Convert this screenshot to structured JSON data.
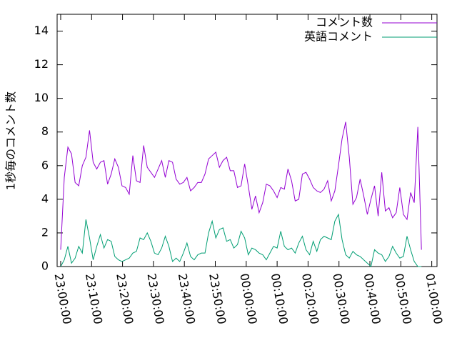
{
  "chart_data": {
    "type": "line",
    "ylabel": "1秒毎のコメント数",
    "x": [
      0,
      70,
      140,
      210,
      280,
      350,
      420,
      490,
      560,
      630,
      700,
      770,
      840,
      910,
      980,
      1050,
      1120,
      1190,
      1260,
      1330,
      1400,
      1470,
      1540,
      1610,
      1680,
      1750,
      1820,
      1890,
      1960,
      2030,
      2100,
      2170,
      2240,
      2310,
      2380,
      2450,
      2520,
      2590,
      2660,
      2730,
      2800,
      2870,
      2940,
      3010,
      3080,
      3150,
      3220,
      3290,
      3360,
      3430,
      3500,
      3570,
      3640,
      3710,
      3780,
      3850,
      3920,
      3990,
      4060,
      4130,
      4200,
      4270,
      4340,
      4410,
      4480,
      4550,
      4620,
      4690,
      4760,
      4830,
      4900,
      4970,
      5040,
      5110,
      5180,
      5250,
      5320,
      5390,
      5460,
      5530,
      5600,
      5670,
      5740,
      5810,
      5880,
      5950,
      6020,
      6090,
      6160,
      6230,
      6300,
      6370,
      6440,
      6510,
      6580,
      6650,
      6720,
      6790,
      6860,
      6930,
      7000
    ],
    "series": [
      {
        "name": "コメント数",
        "color": "#9400d3",
        "values": [
          1.0,
          5.3,
          7.1,
          6.7,
          5.0,
          4.8,
          6.0,
          6.5,
          8.1,
          6.2,
          5.8,
          6.2,
          6.3,
          4.9,
          5.5,
          6.4,
          5.9,
          4.8,
          4.7,
          4.3,
          6.6,
          5.1,
          5.0,
          7.2,
          5.9,
          5.6,
          5.3,
          5.8,
          6.3,
          5.3,
          6.3,
          6.2,
          5.2,
          4.9,
          5.0,
          5.3,
          4.5,
          4.7,
          5.0,
          5.0,
          5.5,
          6.4,
          6.6,
          6.8,
          5.9,
          6.3,
          6.5,
          5.7,
          5.7,
          4.7,
          4.8,
          6.1,
          4.8,
          3.4,
          4.2,
          3.2,
          3.8,
          4.9,
          4.8,
          4.5,
          4.1,
          4.7,
          4.6,
          5.8,
          5.1,
          3.9,
          4.0,
          5.5,
          5.6,
          5.2,
          4.7,
          4.5,
          4.4,
          4.6,
          5.1,
          3.9,
          4.5,
          6.0,
          7.6,
          8.6,
          6.5,
          3.7,
          4.1,
          5.2,
          4.2,
          3.1,
          4.0,
          4.8,
          3.0,
          5.6,
          3.3,
          3.5,
          2.9,
          3.2,
          4.7,
          3.1,
          2.8,
          4.4,
          3.8,
          8.3,
          1.0
        ]
      },
      {
        "name": "英語コメント",
        "color": "#009e73",
        "values": [
          0.0,
          0.4,
          1.2,
          0.2,
          0.5,
          1.2,
          0.8,
          2.8,
          1.7,
          0.4,
          1.2,
          1.9,
          1.1,
          1.6,
          1.5,
          0.6,
          0.4,
          0.3,
          0.4,
          0.5,
          0.8,
          0.9,
          1.7,
          1.6,
          2.0,
          1.5,
          0.8,
          0.7,
          1.1,
          1.8,
          1.2,
          0.3,
          0.5,
          0.3,
          0.8,
          1.4,
          0.6,
          0.4,
          0.7,
          0.8,
          0.8,
          2.0,
          2.7,
          1.7,
          2.2,
          2.3,
          1.5,
          1.6,
          1.1,
          1.3,
          2.1,
          1.7,
          0.7,
          1.1,
          1.0,
          0.8,
          0.7,
          0.4,
          0.8,
          1.2,
          1.1,
          2.1,
          1.2,
          1.0,
          1.1,
          0.8,
          1.4,
          1.8,
          1.0,
          0.7,
          1.5,
          0.9,
          1.6,
          1.8,
          1.7,
          1.6,
          2.7,
          3.1,
          1.6,
          0.7,
          0.5,
          0.9,
          0.7,
          0.6,
          0.4,
          0.2,
          0.0,
          1.0,
          0.8,
          0.7,
          0.3,
          0.6,
          1.2,
          0.8,
          0.5,
          0.6,
          1.8,
          1.0,
          0.3,
          0.0,
          0.0
        ]
      }
    ],
    "xlim": [
      -69,
      7302
    ],
    "xticks": [
      {
        "value": 0,
        "label": "23:00:00"
      },
      {
        "value": 600,
        "label": "23:10:00"
      },
      {
        "value": 1200,
        "label": "23:20:00"
      },
      {
        "value": 1800,
        "label": "23:30:00"
      },
      {
        "value": 2400,
        "label": "23:40:00"
      },
      {
        "value": 3000,
        "label": "23:50:00"
      },
      {
        "value": 3600,
        "label": "00:00:00"
      },
      {
        "value": 4200,
        "label": "00:10:00"
      },
      {
        "value": 4800,
        "label": "00:20:00"
      },
      {
        "value": 5400,
        "label": "00:30:00"
      },
      {
        "value": 6000,
        "label": "00:40:00"
      },
      {
        "value": 6600,
        "label": "00:50:00"
      },
      {
        "value": 7200,
        "label": "01:00:00"
      }
    ],
    "ylim": [
      0,
      15
    ],
    "yticks": [
      0,
      2,
      4,
      6,
      8,
      10,
      12,
      14
    ],
    "legend": "top-right",
    "grid": false
  }
}
